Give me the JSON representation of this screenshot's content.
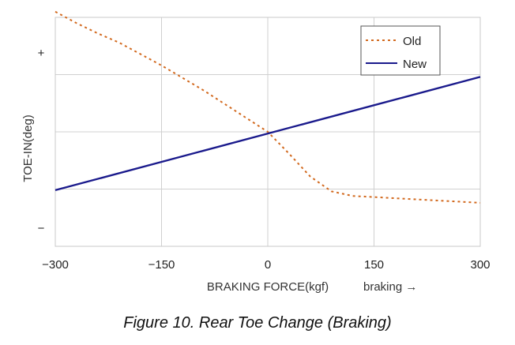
{
  "chart_data": {
    "type": "line",
    "title": "",
    "xlabel": "BRAKING FORCE(kgf)",
    "x_direction_note": "braking →",
    "ylabel": "TOE-IN(deg)",
    "y_tick_labels": {
      "top": "+",
      "bottom": "−"
    },
    "xlim": [
      -300,
      300
    ],
    "ylim": [
      -1.0,
      1.0
    ],
    "x_ticks": [
      -300,
      -150,
      0,
      150,
      300
    ],
    "grid": true,
    "legend_position": "top-right",
    "series": [
      {
        "name": "Old",
        "style": "dotted",
        "color": "#d2691e",
        "x": [
          -300,
          -270,
          -240,
          -210,
          -180,
          -150,
          -120,
          -90,
          -60,
          -30,
          0,
          30,
          60,
          90,
          120,
          150,
          180,
          210,
          240,
          270,
          300
        ],
        "y": [
          1.05,
          0.95,
          0.86,
          0.78,
          0.68,
          0.58,
          0.47,
          0.36,
          0.24,
          0.12,
          0.0,
          -0.19,
          -0.39,
          -0.52,
          -0.56,
          -0.57,
          -0.58,
          -0.59,
          -0.6,
          -0.61,
          -0.62
        ]
      },
      {
        "name": "New",
        "style": "solid",
        "color": "#1a1a8c",
        "x": [
          -300,
          300
        ],
        "y": [
          -0.51,
          0.48
        ]
      }
    ]
  },
  "caption": "Figure 10. Rear Toe Change (Braking)"
}
